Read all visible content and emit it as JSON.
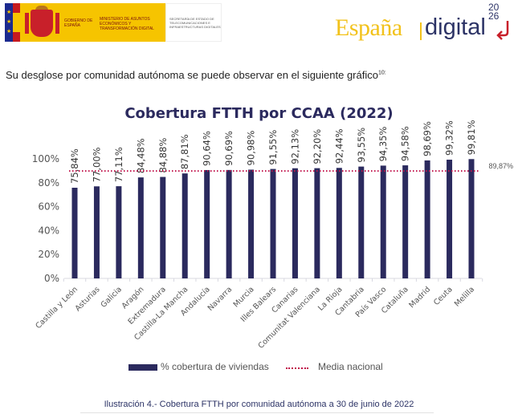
{
  "header": {
    "gov_line1": "Gobierno de España",
    "ministry": "Ministerio de Asuntos Económicos y Transformación Digital",
    "secretariat": "Secretaría de Estado de Telecomunicaciones e Infraestructuras Digitales",
    "brand_espana": "España",
    "brand_digital": "digital",
    "brand_year_top": "20",
    "brand_year_bottom": "26"
  },
  "intro_text": "Su desglose por comunidad autónoma se puede observar en el siguiente gráfico",
  "intro_footnote": "10:",
  "legend": {
    "series_label": "% cobertura de viviendas",
    "media_label": "Media nacional"
  },
  "caption": "Ilustración 4.- Cobertura FTTH por comunidad autónoma a 30 de junio de 2022",
  "colors": {
    "bar": "#2b2a5e",
    "media_line": "#c0124a",
    "axis_text": "#555555"
  },
  "chart_data": {
    "type": "bar",
    "title": "Cobertura FTTH por CCAA (2022)",
    "xlabel": "",
    "ylabel": "",
    "ylim": [
      0,
      100
    ],
    "yticks": [
      "0%",
      "20%",
      "40%",
      "60%",
      "80%",
      "100%"
    ],
    "ytick_values": [
      0,
      20,
      40,
      60,
      80,
      100
    ],
    "grid": false,
    "legend_position": "bottom",
    "categories": [
      "Castilla y León",
      "Asturias",
      "Galicia",
      "Aragón",
      "Extremadura",
      "Castilla-La Mancha",
      "Andalucía",
      "Navarra",
      "Murcia",
      "Illes Balears",
      "Canarias",
      "Comunitat Valenciana",
      "La Rioja",
      "Cantabria",
      "País Vasco",
      "Cataluña",
      "Madrid",
      "Ceuta",
      "Melilla"
    ],
    "series": [
      {
        "name": "% cobertura de viviendas",
        "values": [
          75.84,
          77.0,
          77.11,
          84.48,
          84.88,
          87.81,
          90.64,
          90.69,
          90.98,
          91.55,
          92.13,
          92.2,
          92.44,
          93.55,
          94.35,
          94.58,
          98.69,
          99.32,
          99.81
        ],
        "labels": [
          "75,84%",
          "77,00%",
          "77,11%",
          "84,48%",
          "84,88%",
          "87,81%",
          "90,64%",
          "90,69%",
          "90,98%",
          "91,55%",
          "92,13%",
          "92,20%",
          "92,44%",
          "93,55%",
          "94,35%",
          "94,58%",
          "98,69%",
          "99,32%",
          "99,81%"
        ]
      }
    ],
    "reference_line": {
      "name": "Media nacional",
      "value": 89.87,
      "label": "89,87%"
    }
  }
}
